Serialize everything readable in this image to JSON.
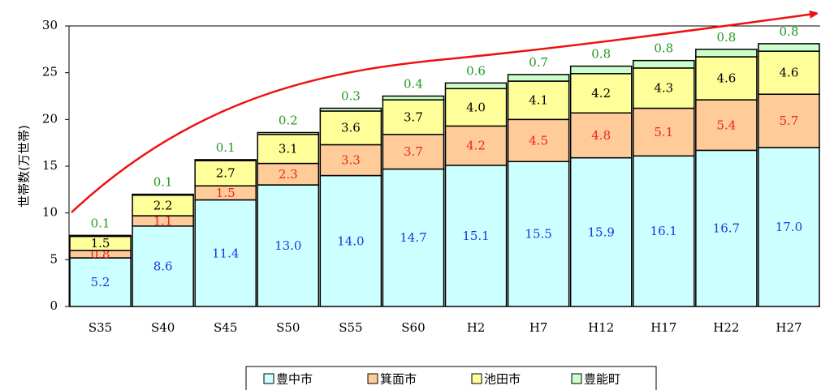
{
  "chart_data": {
    "type": "stacked_bar",
    "y_label": "世帯数(万世帯)",
    "categories": [
      "S35",
      "S40",
      "S45",
      "S50",
      "S55",
      "S60",
      "H2",
      "H7",
      "H12",
      "H17",
      "H22",
      "H27"
    ],
    "series": [
      {
        "name": "豊中市",
        "color": "#ccffff",
        "values": [
          5.2,
          8.6,
          11.4,
          13.0,
          14.0,
          14.7,
          15.1,
          15.5,
          15.9,
          16.1,
          16.7,
          17.0
        ],
        "value_labels": [
          "5.2",
          "8.6",
          "11.4",
          "13.0",
          "14.0",
          "14.7",
          "15.1",
          "15.5",
          "15.9",
          "16.1",
          "16.7",
          "17.0"
        ]
      },
      {
        "name": "箕面市",
        "color": "#ffcc99",
        "values": [
          0.8,
          1.1,
          1.5,
          2.3,
          3.3,
          3.7,
          4.2,
          4.5,
          4.8,
          5.1,
          5.4,
          5.7
        ],
        "value_labels": [
          "0.8",
          "1.1",
          "1.5",
          "2.3",
          "3.3",
          "3.7",
          "4.2",
          "4.5",
          "4.8",
          "5.1",
          "5.4",
          "5.7"
        ]
      },
      {
        "name": "池田市",
        "color": "#ffff99",
        "values": [
          1.5,
          2.2,
          2.7,
          3.1,
          3.6,
          3.7,
          4.0,
          4.1,
          4.2,
          4.3,
          4.6,
          4.6
        ],
        "value_labels": [
          "1.5",
          "2.2",
          "2.7",
          "3.1",
          "3.6",
          "3.7",
          "4.0",
          "4.1",
          "4.2",
          "4.3",
          "4.6",
          "4.6"
        ]
      },
      {
        "name": "豊能町",
        "color": "#ccffcc",
        "values": [
          0.1,
          0.1,
          0.1,
          0.2,
          0.3,
          0.4,
          0.6,
          0.7,
          0.8,
          0.8,
          0.8,
          0.8
        ],
        "value_labels": [
          "0.1",
          "0.1",
          "0.1",
          "0.2",
          "0.3",
          "0.4",
          "0.6",
          "0.7",
          "0.8",
          "0.8",
          "0.8",
          "0.8"
        ]
      }
    ],
    "ylim": [
      0,
      30
    ],
    "yticks": [
      0,
      5,
      10,
      15,
      20,
      25,
      30
    ],
    "grid": false,
    "legend": "bottom"
  }
}
